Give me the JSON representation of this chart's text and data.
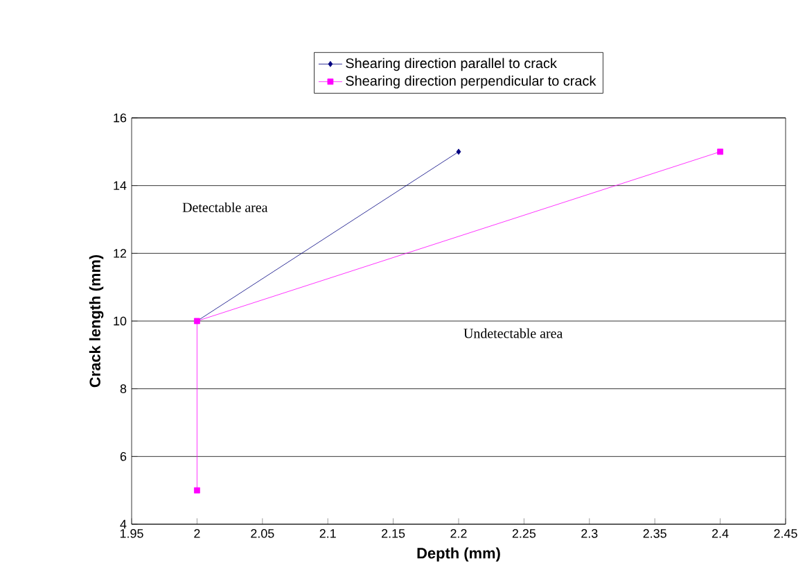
{
  "chart_data": {
    "type": "line",
    "xlabel": "Depth (mm)",
    "ylabel": "Crack length (mm)",
    "series": [
      {
        "name": "Shearing direction parallel to crack",
        "color": "#000080",
        "marker": "diamond",
        "x": [
          2,
          2.2
        ],
        "values": [
          10,
          15
        ]
      },
      {
        "name": "Shearing direction perpendicular to crack",
        "color": "#ff00ff",
        "marker": "square",
        "x": [
          2,
          2,
          2.4
        ],
        "values": [
          5,
          10,
          15
        ]
      }
    ],
    "xlim": [
      1.95,
      2.45
    ],
    "xticks": [
      1.95,
      2,
      2.05,
      2.1,
      2.15,
      2.2,
      2.25,
      2.3,
      2.35,
      2.4,
      2.45
    ],
    "ylim": [
      4,
      16
    ],
    "yticks": [
      4,
      6,
      8,
      10,
      12,
      14,
      16
    ],
    "grid": "y",
    "legend": "top",
    "line_style": "solid",
    "annotations": [
      "Detectable area",
      "Undetectable area"
    ]
  }
}
